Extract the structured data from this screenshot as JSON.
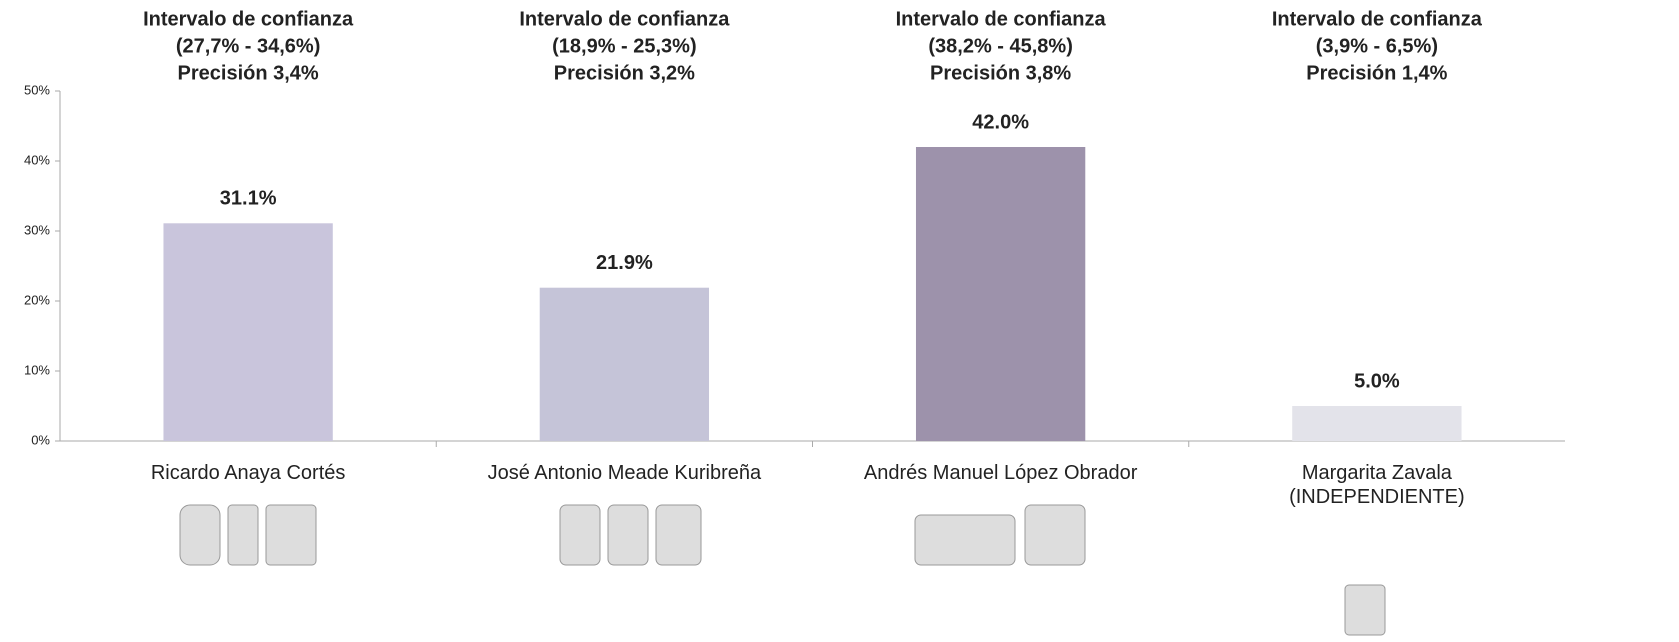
{
  "chart_data": {
    "type": "bar",
    "categories": [
      "Ricardo Anaya Cortés",
      "José Antonio Meade Kuribreña",
      "Andrés Manuel López Obrador",
      "Margarita Zavala\n(INDEPENDIENTE)"
    ],
    "values": [
      31.1,
      21.9,
      42.0,
      5.0
    ],
    "value_labels": [
      "31.1%",
      "21.9%",
      "42.0%",
      "5.0%"
    ],
    "colors": [
      "#c9c5dc",
      "#c5c4d8",
      "#9d92ab",
      "#e3e3ea"
    ],
    "annotations": [
      [
        "Intervalo de confianza",
        "(27,7% - 34,6%)",
        "Precisión 3,4%"
      ],
      [
        "Intervalo de confianza",
        "(18,9% - 25,3%)",
        "Precisión 3,2%"
      ],
      [
        "Intervalo de confianza",
        "(38,2% - 45,8%)",
        "Precisión 3,8%"
      ],
      [
        "Intervalo de confianza",
        "(3,9% - 6,5%)",
        "Precisión 1,4%"
      ]
    ],
    "ylim": [
      0,
      50
    ],
    "yticks": [
      {
        "value": 0,
        "label": "0%"
      },
      {
        "value": 10,
        "label": "10%"
      },
      {
        "value": 20,
        "label": "20%"
      },
      {
        "value": 30,
        "label": "30%"
      },
      {
        "value": 40,
        "label": "40%"
      },
      {
        "value": 50,
        "label": "50%"
      }
    ],
    "grid": false
  }
}
